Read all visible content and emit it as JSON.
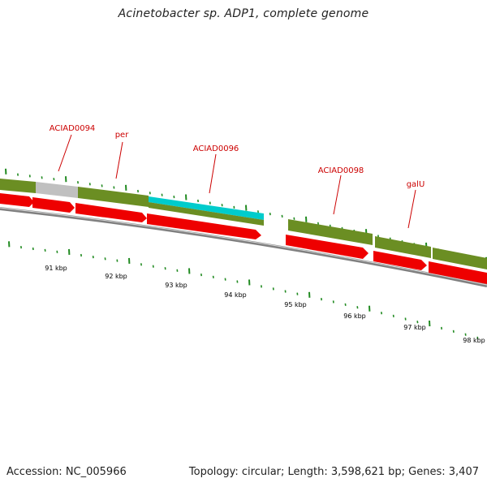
{
  "title": "Acinetobacter sp. ADP1, complete genome",
  "footer": {
    "accession": "Accession: NC_005966",
    "summary": "Topology: circular; Length: 3,598,621 bp; Genes: 3,407"
  },
  "gene_labels": [
    "ACIAD0094",
    "per",
    "ACIAD0096",
    "ACIAD0098",
    "galU"
  ],
  "scale_labels": [
    "91 kbp",
    "92 kbp",
    "93 kbp",
    "94 kbp",
    "95 kbp",
    "96 kbp",
    "97 kbp",
    "98 kbp"
  ],
  "colors": {
    "gene_label": "#cc0000",
    "tick": "#228b22",
    "cds_feature": "#6b8e23",
    "pseudo_feature": "#c0c0c0",
    "highlight_feature": "#00cccc",
    "gene_arrow": "#ee0000",
    "backbone": "#808080"
  }
}
